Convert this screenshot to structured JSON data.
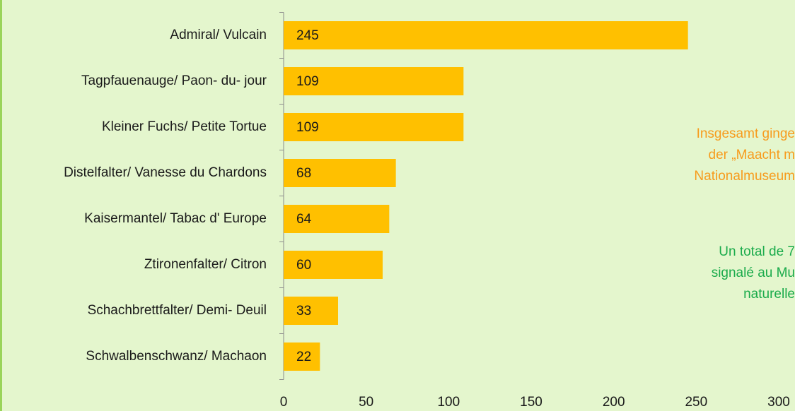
{
  "chart_data": {
    "type": "bar",
    "orientation": "horizontal",
    "categories": [
      "Admiral/ Vulcain",
      "Tagpfauenauge/ Paon- du- jour",
      "Kleiner Fuchs/ Petite Tortue",
      "Distelfalter/ Vanesse du Chardons",
      "Kaisermantel/ Tabac d' Europe",
      "Ztironenfalter/ Citron",
      "Schachbrettfalter/ Demi- Deuil",
      "Schwalbenschwanz/ Machaon"
    ],
    "values": [
      245,
      109,
      109,
      68,
      64,
      60,
      33,
      22
    ],
    "color": "#ffc000",
    "xlim": [
      0,
      300
    ],
    "xticks": [
      0,
      50,
      100,
      150,
      200,
      250,
      300
    ],
    "annotations": [
      {
        "lines": [
          "Insgesamt ginge",
          "der „Maacht m",
          "Nationalmuseum"
        ],
        "color": "#f79b1c"
      },
      {
        "lines": [
          "Un total de 7",
          "signalé au Mu",
          "naturelle"
        ],
        "color": "#1aab4b"
      }
    ]
  }
}
